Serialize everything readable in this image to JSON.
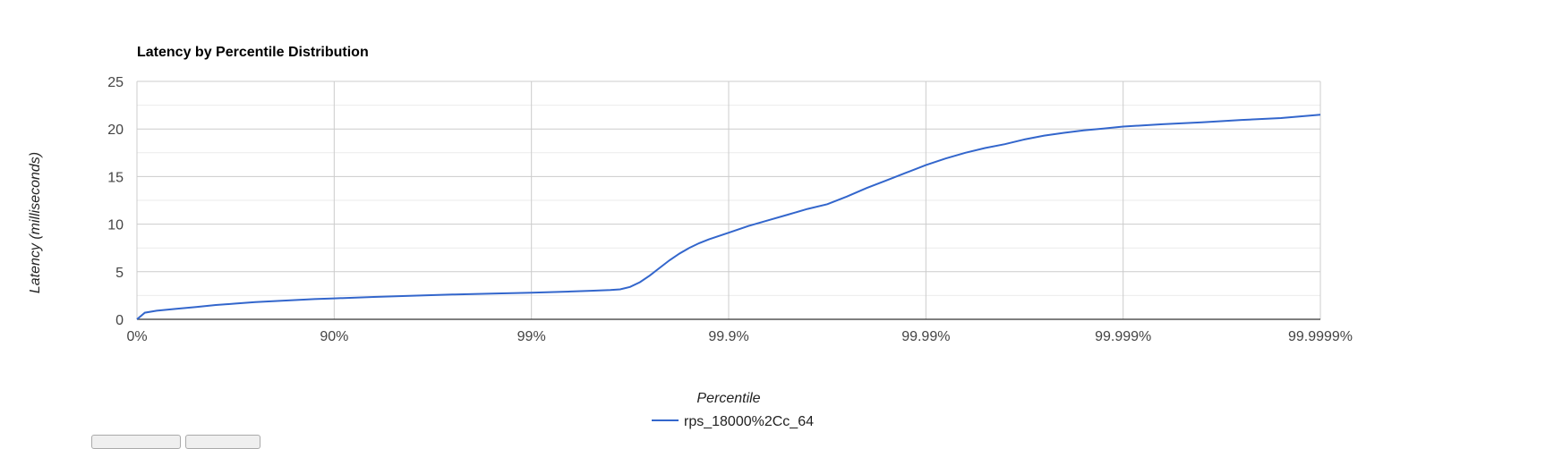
{
  "chart_data": {
    "type": "line",
    "title": "Latency by Percentile Distribution",
    "xlabel": "Percentile",
    "ylabel": "Latency (milliseconds)",
    "x_scale": "log(1/(1-percentile))",
    "xlim_decades": [
      0,
      6
    ],
    "x_ticks": [
      {
        "decade": 0,
        "label": "0%"
      },
      {
        "decade": 1,
        "label": "90%"
      },
      {
        "decade": 2,
        "label": "99%"
      },
      {
        "decade": 3,
        "label": "99.9%"
      },
      {
        "decade": 4,
        "label": "99.99%"
      },
      {
        "decade": 5,
        "label": "99.999%"
      },
      {
        "decade": 6,
        "label": "99.9999%"
      }
    ],
    "ylim": [
      0,
      25
    ],
    "y_ticks": [
      0,
      5,
      10,
      15,
      20,
      25
    ],
    "grid": true,
    "legend_position": "bottom",
    "series": [
      {
        "name": "rps_18000%2Cc_64",
        "color": "#3366cc",
        "points": [
          [
            0,
            0
          ],
          [
            0.04,
            0.7
          ],
          [
            0.1,
            0.9
          ],
          [
            0.2,
            1.1
          ],
          [
            0.3,
            1.3
          ],
          [
            0.4,
            1.5
          ],
          [
            0.5,
            1.65
          ],
          [
            0.6,
            1.8
          ],
          [
            0.7,
            1.92
          ],
          [
            0.8,
            2.02
          ],
          [
            0.9,
            2.12
          ],
          [
            1.0,
            2.2
          ],
          [
            1.2,
            2.35
          ],
          [
            1.4,
            2.48
          ],
          [
            1.6,
            2.6
          ],
          [
            1.8,
            2.7
          ],
          [
            2.0,
            2.8
          ],
          [
            2.2,
            2.92
          ],
          [
            2.3,
            3.0
          ],
          [
            2.4,
            3.08
          ],
          [
            2.45,
            3.15
          ],
          [
            2.5,
            3.4
          ],
          [
            2.55,
            3.9
          ],
          [
            2.6,
            4.6
          ],
          [
            2.65,
            5.4
          ],
          [
            2.7,
            6.2
          ],
          [
            2.75,
            6.9
          ],
          [
            2.8,
            7.5
          ],
          [
            2.85,
            8.0
          ],
          [
            2.9,
            8.4
          ],
          [
            3.0,
            9.1
          ],
          [
            3.1,
            9.8
          ],
          [
            3.2,
            10.4
          ],
          [
            3.3,
            11.0
          ],
          [
            3.4,
            11.6
          ],
          [
            3.5,
            12.1
          ],
          [
            3.6,
            12.9
          ],
          [
            3.7,
            13.8
          ],
          [
            3.8,
            14.6
          ],
          [
            3.9,
            15.4
          ],
          [
            4.0,
            16.2
          ],
          [
            4.1,
            16.9
          ],
          [
            4.2,
            17.5
          ],
          [
            4.3,
            18.0
          ],
          [
            4.4,
            18.4
          ],
          [
            4.5,
            18.9
          ],
          [
            4.6,
            19.3
          ],
          [
            4.7,
            19.6
          ],
          [
            4.8,
            19.85
          ],
          [
            4.9,
            20.05
          ],
          [
            5.0,
            20.25
          ],
          [
            5.2,
            20.5
          ],
          [
            5.4,
            20.7
          ],
          [
            5.6,
            20.95
          ],
          [
            5.8,
            21.15
          ],
          [
            6.0,
            21.5
          ]
        ]
      }
    ]
  },
  "footer": {
    "buttons": [
      "",
      ""
    ]
  }
}
